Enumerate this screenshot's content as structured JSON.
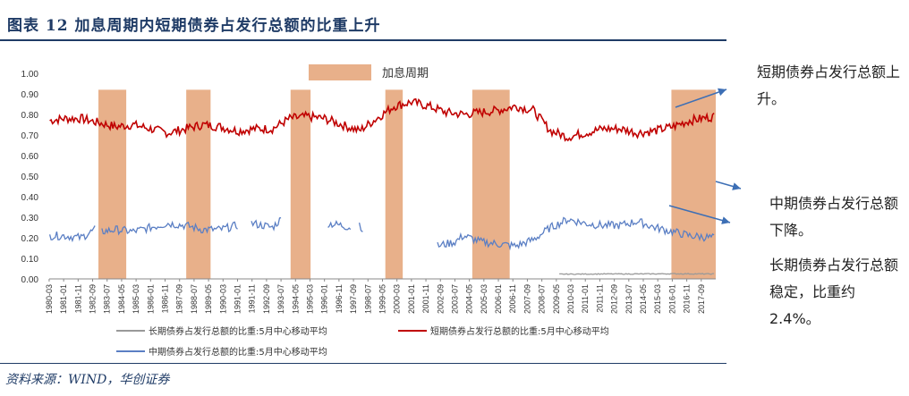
{
  "header": {
    "title": "图表 12 加息周期内短期债券占发行总额的比重上升"
  },
  "footer": {
    "source": "资料来源：WIND，华创证券"
  },
  "annotations": {
    "short_term": "短期债券占发行总额上升。",
    "mid_term": "中期债券占发行总额下降。",
    "long_term": "长期债券占发行总额稳定，比重约2.4%。"
  },
  "colors": {
    "band": "#e8b08a",
    "short": "#c00000",
    "mid": "#5b7fc4",
    "long": "#999999",
    "arrow": "#3d6fb5"
  },
  "chart_data": {
    "type": "line",
    "title": "",
    "xlabel": "",
    "ylabel": "",
    "ylim": [
      0,
      1.0
    ],
    "yticks": [
      "0.00",
      "0.10",
      "0.20",
      "0.30",
      "0.40",
      "0.50",
      "0.60",
      "0.70",
      "0.80",
      "0.90",
      "1.00"
    ],
    "x_start": 1980.17,
    "x_end": 2018.5,
    "xticks": [
      "1980-03",
      "1981-01",
      "1981-11",
      "1982-09",
      "1983-07",
      "1984-05",
      "1985-03",
      "1986-01",
      "1986-11",
      "1987-09",
      "1988-07",
      "1989-05",
      "1990-03",
      "1991-01",
      "1991-11",
      "1992-09",
      "1993-07",
      "1994-05",
      "1995-03",
      "1996-01",
      "1996-11",
      "1997-09",
      "1998-07",
      "1999-05",
      "2000-03",
      "2001-01",
      "2001-11",
      "2002-09",
      "2003-07",
      "2004-05",
      "2005-03",
      "2006-01",
      "2006-11",
      "2007-09",
      "2008-07",
      "2009-05",
      "2010-03",
      "2011-01",
      "2011-11",
      "2012-09",
      "2013-07",
      "2014-05",
      "2015-03",
      "2016-01",
      "2016-11",
      "2017-09"
    ],
    "rate_hike_label": "加息周期",
    "rate_hike_periods": [
      [
        1983.0,
        1984.6
      ],
      [
        1988.05,
        1989.45
      ],
      [
        1994.05,
        1995.2
      ],
      [
        1999.5,
        2000.5
      ],
      [
        2004.5,
        2006.65
      ],
      [
        2015.95,
        2018.5
      ]
    ],
    "series": [
      {
        "name": "短期债券占发行总额的比重:5月中心移动平均",
        "segments": [
          [
            [
              1980.2,
              0.77
            ],
            [
              1981,
              0.78
            ],
            [
              1982,
              0.78
            ],
            [
              1983,
              0.76
            ],
            [
              1984,
              0.74
            ],
            [
              1985,
              0.75
            ],
            [
              1986,
              0.73
            ],
            [
              1987,
              0.71
            ],
            [
              1988,
              0.73
            ],
            [
              1989,
              0.75
            ],
            [
              1990,
              0.74
            ],
            [
              1991,
              0.72
            ],
            [
              1992,
              0.73
            ],
            [
              1993,
              0.73
            ],
            [
              1994,
              0.78
            ],
            [
              1995,
              0.79
            ],
            [
              1996,
              0.78
            ],
            [
              1997,
              0.75
            ],
            [
              1998,
              0.72
            ],
            [
              1999,
              0.78
            ],
            [
              2000,
              0.84
            ],
            [
              2001,
              0.86
            ],
            [
              2002,
              0.84
            ],
            [
              2003,
              0.81
            ],
            [
              2004,
              0.8
            ],
            [
              2005,
              0.81
            ],
            [
              2006,
              0.82
            ],
            [
              2007,
              0.84
            ],
            [
              2008,
              0.82
            ],
            [
              2009,
              0.72
            ],
            [
              2010,
              0.69
            ],
            [
              2011,
              0.71
            ],
            [
              2012,
              0.73
            ],
            [
              2013,
              0.73
            ],
            [
              2014,
              0.71
            ],
            [
              2015,
              0.72
            ],
            [
              2016,
              0.74
            ],
            [
              2017,
              0.77
            ],
            [
              2018.4,
              0.79
            ]
          ]
        ]
      },
      {
        "name": "中期债券占发行总额的比重:5月中心移动平均",
        "segments": [
          [
            [
              1980.2,
              0.21
            ],
            [
              1981,
              0.21
            ],
            [
              1982,
              0.2
            ],
            [
              1982.8,
              0.24
            ]
          ],
          [
            [
              1983.2,
              0.23
            ],
            [
              1984,
              0.24
            ],
            [
              1985,
              0.23
            ],
            [
              1986,
              0.25
            ],
            [
              1987,
              0.27
            ],
            [
              1988,
              0.26
            ],
            [
              1989,
              0.24
            ],
            [
              1990,
              0.24
            ],
            [
              1991,
              0.26
            ]
          ],
          [
            [
              1991.8,
              0.27
            ],
            [
              1992.5,
              0.26
            ],
            [
              1993,
              0.25
            ],
            [
              1993.5,
              0.29
            ]
          ],
          [
            [
              1996.2,
              0.27
            ],
            [
              1997,
              0.26
            ],
            [
              1997.5,
              0.25
            ]
          ],
          [
            [
              1998,
              0.27
            ],
            [
              1998.2,
              0.24
            ]
          ],
          [
            [
              2002.5,
              0.16
            ],
            [
              2003.5,
              0.18
            ],
            [
              2004,
              0.21
            ],
            [
              2005,
              0.18
            ],
            [
              2006,
              0.17
            ],
            [
              2007,
              0.16
            ],
            [
              2008,
              0.19
            ],
            [
              2009,
              0.25
            ],
            [
              2010,
              0.29
            ],
            [
              2011,
              0.27
            ],
            [
              2012,
              0.26
            ],
            [
              2013,
              0.26
            ],
            [
              2014,
              0.28
            ],
            [
              2015,
              0.25
            ],
            [
              2016,
              0.23
            ],
            [
              2017,
              0.21
            ],
            [
              2018.4,
              0.2
            ]
          ]
        ]
      },
      {
        "name": "长期债券占发行总额的比重:5月中心移动平均",
        "segments": [
          [
            [
              2009.5,
              0.023
            ],
            [
              2012,
              0.024
            ],
            [
              2014,
              0.024
            ],
            [
              2016,
              0.025
            ],
            [
              2018.4,
              0.024
            ]
          ]
        ]
      }
    ]
  }
}
